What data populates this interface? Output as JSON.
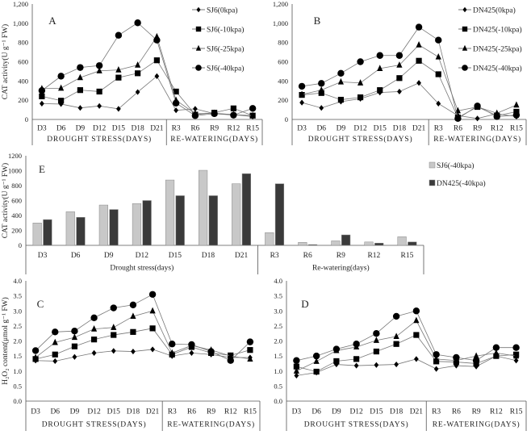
{
  "chart_data": [
    {
      "id": "A",
      "type": "line",
      "panel_label": "A",
      "ylabel": "CAT activity(U g⁻¹ FW)",
      "ylim": [
        0,
        1200
      ],
      "ystep": 200,
      "ytick_labels": [
        "0",
        "200",
        "400",
        "600",
        "800",
        "1,000",
        "1,200"
      ],
      "categories": [
        "D3",
        "D6",
        "D9",
        "D12",
        "D15",
        "D18",
        "D21",
        "R3",
        "R6",
        "R9",
        "R12",
        "R15"
      ],
      "groups": [
        {
          "label": "DROUGHT STRESS(DAYS)",
          "count": 7
        },
        {
          "label": "RE-WATERING(DAYS)",
          "count": 5
        }
      ],
      "series": [
        {
          "name": "SJ6(0kpa)",
          "marker": "diamond",
          "values": [
            165,
            160,
            120,
            140,
            110,
            285,
            450,
            95,
            110,
            60,
            50,
            30
          ]
        },
        {
          "name": "SJ6(-10kpa)",
          "marker": "square",
          "values": [
            240,
            195,
            305,
            290,
            435,
            480,
            615,
            290,
            50,
            70,
            115,
            40
          ]
        },
        {
          "name": "SJ6(-25kpa)",
          "marker": "triangle",
          "values": [
            320,
            325,
            435,
            505,
            515,
            565,
            860,
            200,
            60,
            65,
            50,
            40
          ]
        },
        {
          "name": "SJ6(-40kpa)",
          "marker": "circle",
          "values": [
            300,
            450,
            540,
            560,
            875,
            1005,
            825,
            170,
            40,
            60,
            45,
            115
          ]
        }
      ]
    },
    {
      "id": "B",
      "type": "line",
      "panel_label": "B",
      "ylabel": "",
      "ylim": [
        0,
        1200
      ],
      "ystep": 200,
      "ytick_labels": [
        "0",
        "200",
        "400",
        "600",
        "800",
        "1,000",
        "1,200"
      ],
      "categories": [
        "D3",
        "D6",
        "D9",
        "D12",
        "D15",
        "D18",
        "D21",
        "R3",
        "R6",
        "R9",
        "R12",
        "R15"
      ],
      "groups": [
        {
          "label": "DROUGHT STRESS(DAYS)",
          "count": 7
        },
        {
          "label": "RE-WATERING(DAYS)",
          "count": 5
        }
      ],
      "series": [
        {
          "name": "DN425(0kpa)",
          "marker": "diamond",
          "values": [
            175,
            120,
            185,
            215,
            280,
            290,
            380,
            165,
            40,
            10,
            60,
            30
          ]
        },
        {
          "name": "DN425(-10kpa)",
          "marker": "square",
          "values": [
            255,
            275,
            205,
            230,
            305,
            430,
            610,
            470,
            20,
            130,
            40,
            80
          ]
        },
        {
          "name": "DN425(-25kpa)",
          "marker": "triangle",
          "values": [
            260,
            305,
            390,
            380,
            530,
            565,
            775,
            650,
            90,
            130,
            65,
            150
          ]
        },
        {
          "name": "DN425(-40kpa)",
          "marker": "circle",
          "values": [
            345,
            375,
            480,
            600,
            665,
            665,
            960,
            825,
            10,
            140,
            30,
            45
          ]
        }
      ]
    },
    {
      "id": "E",
      "type": "bar",
      "panel_label": "E",
      "ylabel": "CAT activity(U g⁻¹ FW)",
      "ylim": [
        0,
        1200
      ],
      "ystep": 200,
      "ytick_labels": [
        "0",
        "200",
        "400",
        "600",
        "800",
        "1000",
        "1200"
      ],
      "categories": [
        "D3",
        "D6",
        "D9",
        "D12",
        "D15",
        "D18",
        "D21",
        "R3",
        "R6",
        "R9",
        "R12",
        "R15"
      ],
      "groups": [
        {
          "label": "Drought stress(days)",
          "count": 7
        },
        {
          "label": "Re-watering(days)",
          "count": 5
        }
      ],
      "series": [
        {
          "name": "SJ6(-40kpa)",
          "color": "#c8c8c8",
          "values": [
            300,
            450,
            540,
            560,
            875,
            1005,
            825,
            170,
            40,
            60,
            45,
            115
          ]
        },
        {
          "name": "DN425(-40kpa)",
          "color": "#3a3a3a",
          "values": [
            345,
            375,
            480,
            600,
            665,
            665,
            960,
            825,
            10,
            140,
            30,
            45
          ]
        }
      ]
    },
    {
      "id": "C",
      "type": "line",
      "panel_label": "C",
      "ylabel": "H₂O₂ content(μmol g⁻¹ FW)",
      "ylim": [
        0,
        4
      ],
      "ystep": 0.5,
      "ytick_labels": [
        "0.0",
        "0.5",
        "1.0",
        "1.5",
        "2.0",
        "2.5",
        "3.0",
        "3.5",
        "4.0"
      ],
      "categories": [
        "D3",
        "D6",
        "D9",
        "D12",
        "D15",
        "D18",
        "D21",
        "R3",
        "R6",
        "R9",
        "R12",
        "R15"
      ],
      "groups": [
        {
          "label": "DROUGHT STRESS(DAYS)",
          "count": 7
        },
        {
          "label": "RE-WATERING(DAYS)",
          "count": 5
        }
      ],
      "series": [
        {
          "name": "SJ6(0kpa)",
          "marker": "diamond",
          "values": [
            1.35,
            1.33,
            1.47,
            1.6,
            1.67,
            1.65,
            1.72,
            1.5,
            1.6,
            1.55,
            1.45,
            1.45
          ]
        },
        {
          "name": "SJ6(-10kpa)",
          "marker": "square",
          "values": [
            1.4,
            1.55,
            1.82,
            2.05,
            2.2,
            2.3,
            2.42,
            1.55,
            1.8,
            1.6,
            1.52,
            1.7
          ]
        },
        {
          "name": "SJ6(-25kpa)",
          "marker": "triangle",
          "values": [
            1.45,
            1.95,
            2.12,
            2.4,
            2.45,
            2.82,
            3.0,
            1.6,
            1.85,
            1.7,
            1.5,
            1.4
          ]
        },
        {
          "name": "SJ6(-40kpa)",
          "marker": "circle",
          "values": [
            1.68,
            2.3,
            2.33,
            2.77,
            3.1,
            3.2,
            3.55,
            1.9,
            1.88,
            1.65,
            1.35,
            1.97
          ]
        }
      ]
    },
    {
      "id": "D",
      "type": "line",
      "panel_label": "D",
      "ylabel": "",
      "ylim": [
        0,
        4
      ],
      "ystep": 0.5,
      "ytick_labels": [
        "0.0",
        "0.5",
        "1.0",
        "1.5",
        "2.0",
        "2.5",
        "3.0",
        "3.5",
        "4.0"
      ],
      "categories": [
        "D3",
        "D6",
        "D9",
        "D12",
        "D15",
        "D18",
        "D21",
        "R3",
        "R6",
        "R9",
        "R12",
        "R15"
      ],
      "groups": [
        {
          "label": "DROUGHT STRESS(DAYS)",
          "count": 7
        },
        {
          "label": "RE-WATERING(DAYS)",
          "count": 5
        }
      ],
      "series": [
        {
          "name": "DN425(0kpa)",
          "marker": "diamond",
          "values": [
            0.85,
            0.95,
            1.22,
            1.18,
            1.2,
            1.22,
            1.4,
            1.07,
            1.18,
            1.15,
            1.5,
            1.35
          ]
        },
        {
          "name": "DN425(-10kpa)",
          "marker": "square",
          "values": [
            1.15,
            0.98,
            1.33,
            1.4,
            1.65,
            1.9,
            2.2,
            1.32,
            1.3,
            1.25,
            1.5,
            1.55
          ]
        },
        {
          "name": "DN425(-25kpa)",
          "marker": "triangle",
          "values": [
            1.0,
            1.32,
            1.68,
            1.8,
            2.02,
            2.15,
            2.68,
            1.4,
            1.35,
            1.5,
            1.6,
            1.5
          ]
        },
        {
          "name": "DN425(-40kpa)",
          "marker": "circle",
          "values": [
            1.35,
            1.5,
            1.73,
            1.9,
            2.25,
            2.82,
            3.0,
            1.55,
            1.45,
            1.35,
            1.78,
            1.78
          ]
        }
      ]
    }
  ]
}
